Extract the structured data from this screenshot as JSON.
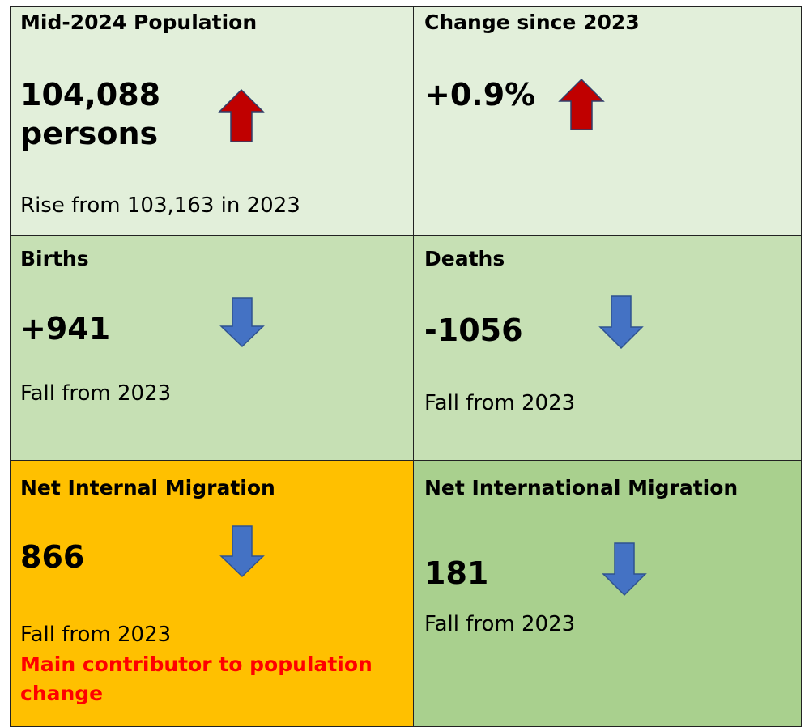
{
  "cells": [
    {
      "title": "Mid-2024 Population",
      "value": "104,088",
      "value_unit": "persons",
      "note": "Rise from 103,163 in 2023"
    },
    {
      "title": "Change since 2023",
      "value": "+0.9%"
    },
    {
      "title": "Births",
      "value": "+941",
      "note": "Fall from 2023"
    },
    {
      "title": "Deaths",
      "value": "-1056",
      "note": "Fall from 2023"
    },
    {
      "title": "Net Internal Migration",
      "value": "866",
      "note": "Fall from 2023",
      "highlight": "Main contributor to population change"
    },
    {
      "title": "Net International Migration",
      "value": "181",
      "note": "Fall from 2023"
    }
  ]
}
